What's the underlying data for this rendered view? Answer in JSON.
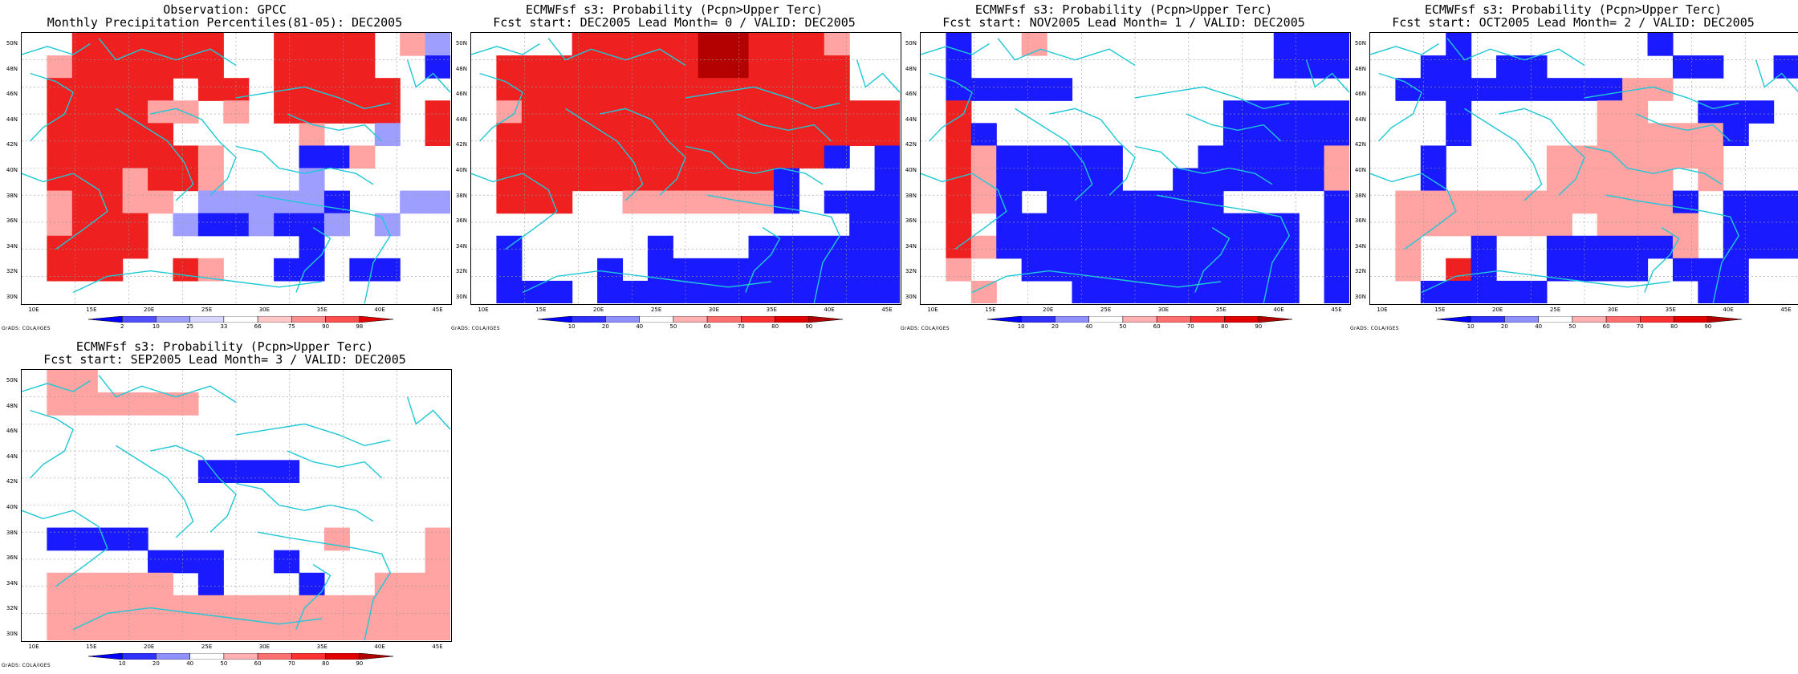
{
  "panels": [
    {
      "title1": "Observation: GPCC",
      "title2": "Monthly Precipitation Percentiles(81-05): DEC2005",
      "colorbar_type": "obs",
      "grid": [
        "WWRRRRRRWWRRRRWPL",
        "WPRRRRRRWWRRRRWWB",
        "WRRRRRWRRWRRRRRWW",
        "WRRRRPPWPWRRRRRWR",
        "WRRRRRWWWWWPWWLWR",
        "WRRRRRRPWWWBBPWWW",
        "WRRRPRRPWWWLWWWWW",
        "WPRRPPWLLLLLBWWLL",
        "WPRRRWLBBLBBLWLWW",
        "WRRRRWWWWWWBWWWWW",
        "WRRRWWRPWWBBWBBWW",
        "WWWWWWWWWWWWWWWWW"
      ]
    },
    {
      "title1": "ECMWFsf s3: Probability (Pcpn>Upper Terc)",
      "title2": "Fcst start: DEC2005  Lead Month= 0 / VALID: DEC2005",
      "colorbar_type": "fcst",
      "grid": [
        "WWWWRRRRRDDRRRPWW",
        "WRRRRRRRRDDRRRRWW",
        "WRRRRRRRRRRRRRRWW",
        "WPRRRRRRRRRRRRRRR",
        "WRRRRRRRRRRRRRRRR",
        "WRRRRRRRRRRRRRBWB",
        "WRRRRRRRRRRRBWWWB",
        "WRRRWWPPPPPPBWBBB",
        "WWWWWWWWWWWWWWWBB",
        "WBWWWWWBWWWBBBBBB",
        "WBWWWBWBBBBBBBBBB",
        "WBBBWBBBBBBBBBBBB"
      ]
    },
    {
      "title1": "ECMWFsf s3: Probability (Pcpn>Upper Terc)",
      "title2": "Fcst start: NOV2005  Lead Month= 1 / VALID: DEC2005",
      "colorbar_type": "fcst",
      "grid": [
        "WBWWPWWWWWWWWWBBB",
        "WBWWWWWWWWWWWWBBB",
        "WBBBBBWWWWWWWWWWW",
        "WRWWWWWWWWWWBBBBB",
        "WRBWWWWWWWWWBBBBB",
        "WRPBBBBBWWWBBBBBP",
        "WRPBBBBBWWBBBBBBP",
        "WRPBWBBBBBBBWWWWB",
        "WRWBBBBBBBBBBBBWB",
        "WRPBBBBBBBBBBBBWB",
        "WPWWBBBBBBBBBBBWB",
        "WWPWWWBBBBBBBBBWB"
      ]
    },
    {
      "title1": "ECMWFsf s3: Probability (Pcpn>Upper Terc)",
      "title2": "Fcst start: OCT2005  Lead Month= 2 / VALID: DEC2005",
      "colorbar_type": "fcst",
      "grid": [
        "WWWBWWWWWWWBWWWWW",
        "WWBBWBBWWWWWBBWWB",
        "WBBBBBBBBBPPWWWWW",
        "WWWBWWWWWPPWWBBBW",
        "WWWBWWWWWPPPPPBWW",
        "WWBWWWWPPPPPPPWWW",
        "WWBWWWWPPPPPWPWWW",
        "WPPPPPPPPPPPBWBBB",
        "WPPPPPPPWPPPPWBBB",
        "WPWWBWWBBBBBPWBBB",
        "WPWRBWWBBBBWBBBWW",
        "WWBBBBBWWWWWWBBWW"
      ]
    },
    {
      "title1": "ECMWFsf s3: Probability (Pcpn>Upper Terc)",
      "title2": "Fcst start: SEP2005  Lead Month= 3 / VALID: DEC2005",
      "colorbar_type": "fcst",
      "grid": [
        "WPPWWWWWWWWWWWWWW",
        "WPPPPPPWWWWWWWWWW",
        "WWWWWWWWWWWWWWWWW",
        "WWWWWWWWWWWWWWWWW",
        "WWWWWWWBBBBWWWWWW",
        "WWWWWWWWWWWWWWWWW",
        "WWWWWWWWWWWWWWWWW",
        "WBBBBWWWWWWWPWWWP",
        "WWWWWBBBWWBWWWWWP",
        "WPPPPPWBWWWBWWPPP",
        "WPPPPPPPPPPPPPPPP",
        "WPPPPPPPPPPPPPPPP"
      ]
    }
  ],
  "latitude_labels": [
    "50N",
    "48N",
    "46N",
    "44N",
    "42N",
    "40N",
    "38N",
    "36N",
    "34N",
    "32N",
    "30N"
  ],
  "longitude_labels": [
    "10E",
    "15E",
    "20E",
    "25E",
    "30E",
    "35E",
    "40E",
    "45E"
  ],
  "colorbars": {
    "obs": {
      "labels": [
        "2",
        "10",
        "25",
        "33",
        "66",
        "75",
        "90",
        "98"
      ],
      "colors": [
        "#0000ff",
        "#5050ff",
        "#a0a0ff",
        "#d8d8ff",
        "#ffffff",
        "#ffc8c8",
        "#ff9090",
        "#ff5050",
        "#e00000"
      ]
    },
    "fcst": {
      "labels": [
        "10",
        "20",
        "40",
        "50",
        "60",
        "70",
        "80",
        "90"
      ],
      "colors": [
        "#0000ff",
        "#3030ff",
        "#9090ff",
        "#ffffff",
        "#ffb0b0",
        "#ff7070",
        "#ff3030",
        "#e00000",
        "#b00000"
      ]
    }
  },
  "cell_colors": {
    "W": "#ffffff",
    "B": "#1a1aff",
    "L": "#9e9eff",
    "P": "#ffa3a3",
    "R": "#ee2020",
    "D": "#b30000"
  },
  "coast_color": "#1ec8d6",
  "credit": "GrADS: COLA/IGES"
}
